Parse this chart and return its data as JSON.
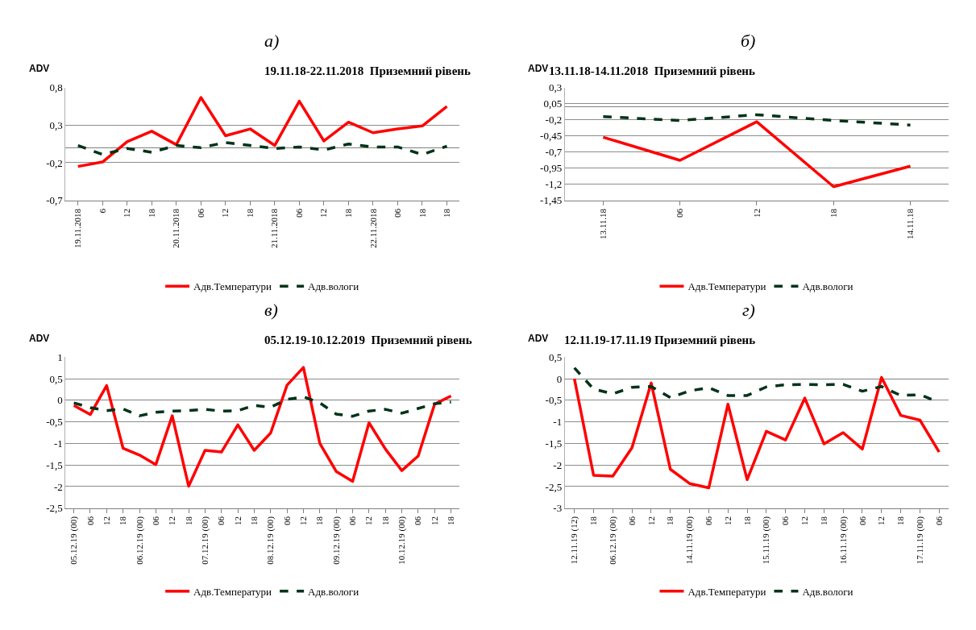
{
  "chart_data": [
    {
      "type": "line",
      "title": "19.11.18-22.11.2018  Приземний рівень",
      "ylabel": "ADV",
      "annotations": [
        "а)"
      ],
      "legend": "bottom",
      "grid": "y",
      "categories": [
        "19.11.2018",
        "6",
        "12",
        "18",
        "20.11.2018",
        "06",
        "12",
        "18",
        "21.11.2018",
        "06",
        "12",
        "18",
        "22.11.2018",
        "06",
        "18",
        "18"
      ],
      "ylim": [
        -0.7,
        0.8
      ],
      "yticks": [
        {
          "value": -0.7,
          "label": "-0,7"
        },
        {
          "value": -0.2,
          "label": "-0,2"
        },
        {
          "value": 0.3,
          "label": "0,3"
        },
        {
          "value": 0.8,
          "label": "0,8"
        }
      ],
      "series": [
        {
          "name": "Адв.Температури",
          "color": "#ff0000",
          "line_style": "solid",
          "values": [
            -0.25,
            -0.19,
            0.08,
            0.22,
            0.04,
            0.67,
            0.16,
            0.25,
            0.03,
            0.62,
            0.09,
            0.34,
            0.2,
            0.25,
            0.29,
            0.55
          ]
        },
        {
          "name": "Адв.вологи",
          "color": "#003319",
          "line_style": "dashed",
          "values": [
            0.03,
            -0.09,
            -0.01,
            -0.06,
            0.03,
            0.0,
            0.07,
            0.03,
            -0.01,
            0.01,
            -0.03,
            0.05,
            0.01,
            0.01,
            -0.09,
            0.02
          ]
        }
      ]
    },
    {
      "type": "line",
      "title": "13.11.18-14.11.2018  Приземний рівень",
      "ylabel": "ADV",
      "annotations": [
        "б)"
      ],
      "legend": "bottom",
      "grid": "y",
      "categories": [
        "13.11.18",
        "06",
        "12",
        "18",
        "14.11.18"
      ],
      "ylim": [
        -1.45,
        0.3
      ],
      "yticks": [
        {
          "value": -1.45,
          "label": "-1,45"
        },
        {
          "value": -1.2,
          "label": "-1,2"
        },
        {
          "value": -0.95,
          "label": "-0,95"
        },
        {
          "value": -0.7,
          "label": "-0,7"
        },
        {
          "value": -0.45,
          "label": "-0,45"
        },
        {
          "value": -0.2,
          "label": "-0,2"
        },
        {
          "value": 0.05,
          "label": "0,05"
        },
        {
          "value": 0.3,
          "label": "0,3"
        }
      ],
      "series": [
        {
          "name": "Адв.Температури",
          "color": "#ff0000",
          "line_style": "solid",
          "values": [
            -0.47,
            -0.83,
            -0.23,
            -1.24,
            -0.92
          ]
        },
        {
          "name": "Адв.вологи",
          "color": "#003319",
          "line_style": "dashed",
          "values": [
            -0.15,
            -0.21,
            -0.12,
            -0.21,
            -0.28
          ]
        }
      ]
    },
    {
      "type": "line",
      "title": "05.12.19-10.12.2019  Приземний рівень",
      "ylabel": "ADV",
      "annotations": [
        "в)"
      ],
      "legend": "bottom",
      "grid": "y",
      "categories": [
        "05.12.19 (00)",
        "06",
        "12",
        "18",
        "06.12.19 (00)",
        "06",
        "12",
        "18",
        "07.12.19 (00)",
        "06",
        "12",
        "18",
        "08.12.19 (00)",
        "06",
        "12",
        "18",
        "09.12.19 (00)",
        "06",
        "12",
        "18",
        "10.12.19 (00)",
        "06",
        "12",
        "18"
      ],
      "ylim": [
        -2.5,
        1
      ],
      "yticks": [
        {
          "value": -2.5,
          "label": "-2,5"
        },
        -2,
        {
          "value": -1.5,
          "label": "-1,5"
        },
        -1,
        {
          "value": -0.5,
          "label": "-0,5"
        },
        0,
        {
          "value": 0.5,
          "label": "0,5"
        },
        1
      ],
      "series": [
        {
          "name": "Адв.Температури",
          "color": "#ff0000",
          "line_style": "solid",
          "values": [
            -0.12,
            -0.33,
            0.34,
            -1.11,
            -1.27,
            -1.49,
            -0.36,
            -1.99,
            -1.16,
            -1.2,
            -0.57,
            -1.16,
            -0.76,
            0.35,
            0.76,
            -1.0,
            -1.65,
            -1.88,
            -0.52,
            -1.13,
            -1.63,
            -1.29,
            -0.09,
            0.1
          ]
        },
        {
          "name": "Адв.вологи",
          "color": "#003319",
          "line_style": "dashed",
          "values": [
            -0.06,
            -0.17,
            -0.24,
            -0.2,
            -0.36,
            -0.28,
            -0.25,
            -0.24,
            -0.21,
            -0.25,
            -0.24,
            -0.12,
            -0.16,
            0.02,
            0.08,
            -0.06,
            -0.32,
            -0.37,
            -0.25,
            -0.21,
            -0.3,
            -0.19,
            -0.08,
            -0.04
          ]
        }
      ]
    },
    {
      "type": "line",
      "title": "12.11.19-17.11.19 Приземний рівень",
      "ylabel": "ADV",
      "annotations": [
        "г)"
      ],
      "legend": "bottom",
      "grid": "y",
      "categories": [
        "12.11.19 (12)",
        "18",
        "06.12.19 (00)",
        "06",
        "12",
        "18",
        "14.11.19 (00)",
        "06",
        "12",
        "18",
        "15.11.19 (00)",
        "06",
        "12",
        "18",
        "16.11.19 (00)",
        "06",
        "12",
        "18",
        "17.11.19 (00)",
        "06"
      ],
      "ylim": [
        -3,
        0.5
      ],
      "yticks": [
        -3,
        {
          "value": -2.5,
          "label": "-2,5"
        },
        -2,
        {
          "value": -1.5,
          "label": "-1,5"
        },
        -1,
        {
          "value": -0.5,
          "label": "-0,5"
        },
        0,
        {
          "value": 0.5,
          "label": "0,5"
        }
      ],
      "series": [
        {
          "name": "Адв.Температури",
          "color": "#ff0000",
          "line_style": "solid",
          "values": [
            0.0,
            -2.24,
            -2.26,
            -1.6,
            -0.1,
            -2.1,
            -2.43,
            -2.53,
            -0.59,
            -2.34,
            -1.22,
            -1.42,
            -0.45,
            -1.51,
            -1.25,
            -1.63,
            0.03,
            -0.85,
            -0.96,
            -1.7
          ]
        },
        {
          "name": "Адв.вологи",
          "color": "#003319",
          "line_style": "dashed",
          "values": [
            0.25,
            -0.24,
            -0.35,
            -0.2,
            -0.18,
            -0.44,
            -0.28,
            -0.21,
            -0.39,
            -0.39,
            -0.19,
            -0.14,
            -0.13,
            -0.14,
            -0.13,
            -0.29,
            -0.18,
            -0.39,
            -0.37,
            -0.55
          ]
        }
      ]
    }
  ]
}
